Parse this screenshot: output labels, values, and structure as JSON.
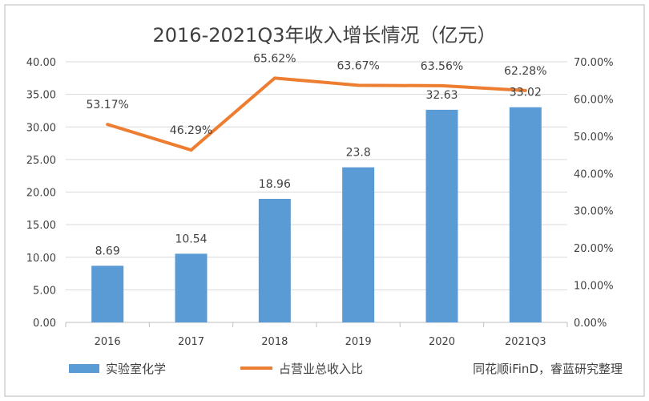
{
  "chart_data": {
    "type": "bar",
    "title": "2016-2021Q3年收入增长情况（亿元）",
    "categories": [
      "2016",
      "2017",
      "2018",
      "2019",
      "2020",
      "2021Q3"
    ],
    "series": [
      {
        "name": "实验室化学",
        "type": "bar",
        "axis": "left",
        "values": [
          8.69,
          10.54,
          18.96,
          23.8,
          32.63,
          33.02
        ],
        "labels": [
          "8.69",
          "10.54",
          "18.96",
          "23.8",
          "32.63",
          "33.02"
        ],
        "color": "#5b9bd5"
      },
      {
        "name": "占营业总收入比",
        "type": "line",
        "axis": "right",
        "values": [
          53.17,
          46.29,
          65.62,
          63.67,
          63.56,
          62.28
        ],
        "labels": [
          "53.17%",
          "46.29%",
          "65.62%",
          "63.67%",
          "63.56%",
          "62.28%"
        ],
        "color": "#ed7d31"
      }
    ],
    "y_left": {
      "ylim": [
        0,
        40
      ],
      "ticks": [
        "0.00",
        "5.00",
        "10.00",
        "15.00",
        "20.00",
        "25.00",
        "30.00",
        "35.00",
        "40.00"
      ]
    },
    "y_right": {
      "ylim": [
        0,
        70
      ],
      "ticks": [
        "0.00%",
        "10.00%",
        "20.00%",
        "30.00%",
        "40.00%",
        "50.00%",
        "60.00%",
        "70.00%"
      ]
    },
    "grid": true,
    "legend": "bottom-left"
  },
  "source_note": "同花顺iFinD，睿蓝研究整理"
}
